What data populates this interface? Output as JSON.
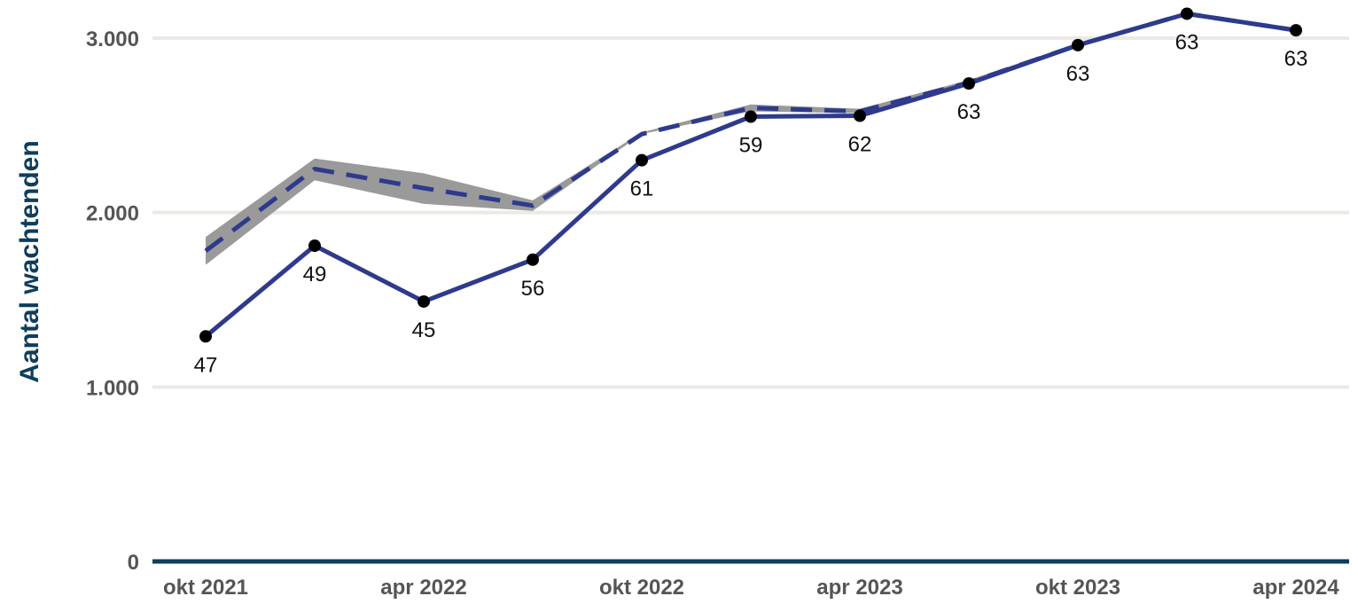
{
  "chart_data": {
    "type": "line",
    "title": "",
    "xlabel": "",
    "ylabel": "Aantal wachtenden",
    "x": [
      "2021-10",
      "2022-01",
      "2022-04",
      "2022-07",
      "2022-10",
      "2023-01",
      "2023-04",
      "2023-07",
      "2023-10",
      "2024-01",
      "2024-04"
    ],
    "x_tick_labels": [
      "okt 2021",
      "apr 2022",
      "okt 2022",
      "apr 2023",
      "okt 2023",
      "apr 2024"
    ],
    "x_tick_positions": [
      "2021-10",
      "2022-04",
      "2022-10",
      "2023-04",
      "2023-10",
      "2024-04"
    ],
    "y_tick_labels": [
      "0",
      "1.000",
      "2.000",
      "3.000"
    ],
    "y_ticks": [
      0,
      1000,
      2000,
      3000
    ],
    "ylim": [
      0,
      3150
    ],
    "grid": true,
    "series": [
      {
        "style": "solid-with-markers",
        "values": [
          1290,
          1810,
          1490,
          1730,
          2300,
          2550,
          2555,
          2740,
          2960,
          3140,
          3045
        ],
        "data_labels": [
          "47",
          "49",
          "45",
          "56",
          "61",
          "59",
          "62",
          "63",
          "63",
          "63",
          "63"
        ]
      },
      {
        "style": "dashed",
        "values": [
          1780,
          2250,
          2140,
          2040,
          2450,
          2600,
          2580,
          2745,
          2960,
          3140,
          3045
        ],
        "band_low": [
          1700,
          2185,
          2050,
          2010,
          2450,
          2580,
          2570,
          2730,
          2955,
          3135,
          3040
        ],
        "band_high": [
          1860,
          2310,
          2225,
          2070,
          2460,
          2620,
          2595,
          2760,
          2970,
          3150,
          3050
        ]
      }
    ],
    "colors": {
      "line": "#2e3a8c",
      "band": "#9a9a9a",
      "grid": "#ece9e4",
      "axis": "#0f3d5c",
      "marker": "#000000"
    }
  }
}
